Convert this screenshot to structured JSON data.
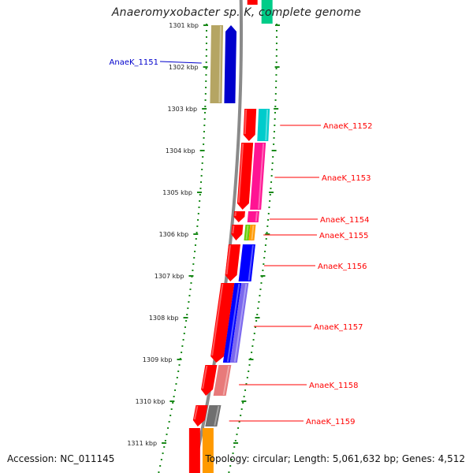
{
  "title": "Anaeromyxobacter sp. K, complete genome",
  "footer": {
    "accession": "Accession: NC_011145",
    "summary": "Topology: circular; Length: 5,061,632 bp; Genes: 4,512"
  },
  "scale": {
    "ticks": [
      "1301 kbp",
      "1302 kbp",
      "1303 kbp",
      "1304 kbp",
      "1305 kbp",
      "1306 kbp",
      "1307 kbp",
      "1308 kbp",
      "1309 kbp",
      "1310 kbp",
      "1311 kbp"
    ]
  },
  "genes": [
    {
      "label": "AnaeK_1151",
      "color": "#0000cc",
      "feature_color": "#b5a563",
      "strand": "reverse"
    },
    {
      "label": "AnaeK_1152",
      "color": "#ff0000",
      "feature_color": "#00cccc",
      "strand": "reverse"
    },
    {
      "label": "AnaeK_1153",
      "color": "#ff0000",
      "feature_color": "#ff1493",
      "strand": "reverse"
    },
    {
      "label": "AnaeK_1154",
      "color": "#ff0000",
      "feature_color": "#ff1493",
      "strand": "reverse"
    },
    {
      "label": "AnaeK_1155",
      "color": "#ff0000",
      "feature_color": "#66cc00",
      "strand": "reverse"
    },
    {
      "label": "AnaeK_1156",
      "color": "#ff0000",
      "feature_color": "#0000ff",
      "strand": "reverse"
    },
    {
      "label": "AnaeK_1157",
      "color": "#ff0000",
      "feature_color": "#2a2ae0",
      "strand": "reverse"
    },
    {
      "label": "AnaeK_1158",
      "color": "#ff0000",
      "feature_color": "#e87a7a",
      "strand": "reverse"
    },
    {
      "label": "AnaeK_1159",
      "color": "#ff0000",
      "feature_color": "#707070",
      "strand": "reverse"
    }
  ]
}
